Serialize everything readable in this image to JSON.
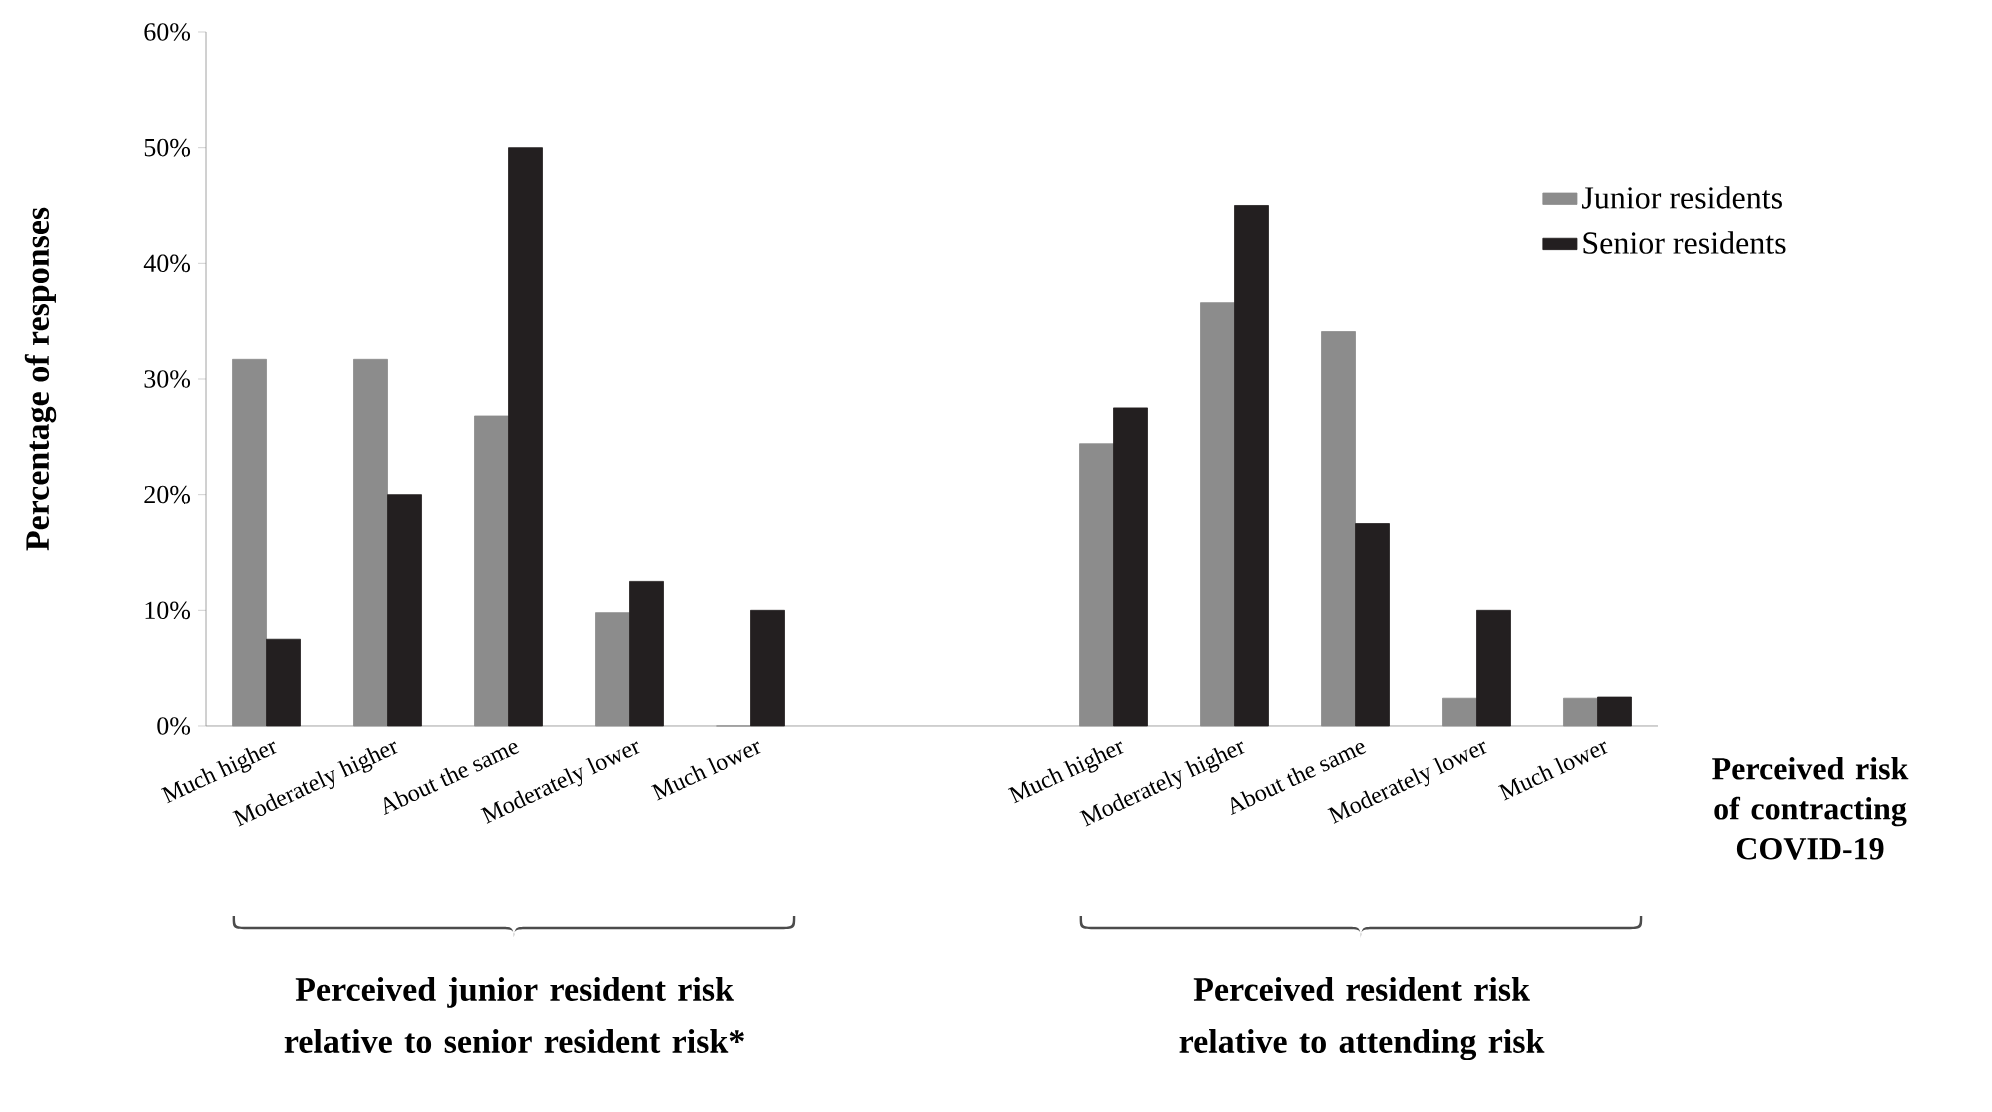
{
  "chart_data": {
    "type": "bar",
    "ylabel": "Percentage of responses",
    "xlabel": "Perceived risk of contracting COVID-19",
    "categories": [
      "Much higher",
      "Moderately higher",
      "About the same",
      "Moderately lower",
      "Much lower",
      null,
      null,
      "Much higher",
      "Moderately higher",
      "About the same",
      "Moderately lower",
      "Much lower"
    ],
    "series": [
      {
        "name": "Junior residents",
        "color": "#8c8c8c",
        "values": [
          31.7,
          31.7,
          26.8,
          9.8,
          0,
          null,
          null,
          24.4,
          36.6,
          34.1,
          2.4,
          2.4
        ]
      },
      {
        "name": "Senior residents",
        "color": "#231f20",
        "values": [
          7.5,
          20,
          50,
          12.5,
          10,
          null,
          null,
          27.5,
          45,
          17.5,
          10,
          2.5
        ]
      }
    ],
    "ylim": [
      0,
      60
    ],
    "yticks": [
      {
        "value": 0,
        "label": "0%"
      },
      {
        "value": 10,
        "label": "10%"
      },
      {
        "value": 20,
        "label": "20%"
      },
      {
        "value": 30,
        "label": "30%"
      },
      {
        "value": 40,
        "label": "40%"
      },
      {
        "value": 50,
        "label": "50%"
      },
      {
        "value": 60,
        "label": "60%"
      }
    ],
    "legend": "top right",
    "grid": false,
    "annotations": [
      "Perceived junior resident risk relative to senior resident risk*",
      "Perceived resident risk relative to attending risk"
    ]
  }
}
